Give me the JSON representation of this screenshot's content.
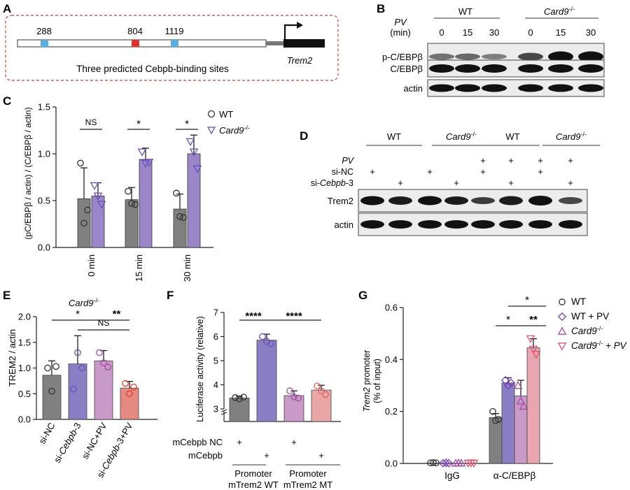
{
  "panels": {
    "A": {
      "letter": "A",
      "sites": [
        "288",
        "804",
        "1119"
      ],
      "caption": "Three predicted Cebpb-binding sites",
      "gene": "Trem2",
      "colors": {
        "site_blue": "#5aaee0",
        "site_red": "#e0332c"
      }
    },
    "B": {
      "letter": "B",
      "pv": "PV",
      "min": "(min)",
      "wt": "WT",
      "ko": "Card9",
      "ko_sup": "-/-",
      "times": [
        "0",
        "15",
        "30",
        "0",
        "15",
        "30"
      ],
      "rows": [
        "p-C/EBPβ",
        "C/EBPβ",
        "actin"
      ]
    },
    "D": {
      "letter": "D",
      "groups": [
        "WT",
        "Card9",
        "WT",
        "Card9"
      ],
      "ko_sup": "-/-",
      "row_labels": [
        "PV",
        "si-NC",
        "si-Cebpb-3"
      ],
      "plus": "+",
      "blot_rows": [
        "Trem2",
        "actin"
      ]
    }
  },
  "chart_data": [
    {
      "panel": "C",
      "type": "bar",
      "categories": [
        "0 min",
        "15 min",
        "30 min"
      ],
      "ylabel": "(pC/EBPβ / actin) / (C/EBPβ / actin)",
      "ylim": [
        0,
        1.5
      ],
      "yticks": [
        "0.0",
        "0.5",
        "1.0",
        "1.5"
      ],
      "series": [
        {
          "name": "WT",
          "values": [
            0.52,
            0.51,
            0.41
          ],
          "sd": [
            0.33,
            0.13,
            0.16
          ],
          "points": [
            [
              0.9,
              0.26,
              0.4
            ],
            [
              0.6,
              0.47,
              0.46
            ],
            [
              0.58,
              0.33,
              0.32
            ]
          ],
          "color": "#808080"
        },
        {
          "name": "Card9-/-",
          "values": [
            0.55,
            0.94,
            1.0
          ],
          "sd": [
            0.14,
            0.12,
            0.2
          ],
          "points": [
            [
              0.66,
              0.55,
              0.46
            ],
            [
              1.02,
              0.9,
              0.91
            ],
            [
              1.13,
              1.02,
              0.84
            ]
          ],
          "color": "#9a86c8"
        }
      ],
      "significance": [
        "NS",
        "*",
        "*"
      ],
      "legend": {
        "wt": "WT",
        "ko": "Card9",
        "ko_sup": "-/-"
      }
    },
    {
      "panel": "E",
      "type": "bar",
      "title": "Card9",
      "title_sup": "-/-",
      "categories": [
        "si-NC",
        "si-Cebpb-3",
        "si-NC+PV",
        "si-Cebpb-3+PV"
      ],
      "ylabel": "TREM2 / actin",
      "ylim": [
        0,
        2.0
      ],
      "yticks": [
        "0.0",
        "0.5",
        "1.0",
        "1.5",
        "2.0"
      ],
      "values": [
        0.86,
        1.08,
        1.14,
        0.61
      ],
      "sd": [
        0.28,
        0.55,
        0.2,
        0.13
      ],
      "points": [
        [
          1.0,
          0.55,
          1.03
        ],
        [
          0.59,
          1.3,
          1.0
        ],
        [
          1.3,
          1.1,
          1.02
        ],
        [
          0.7,
          0.5,
          0.63
        ]
      ],
      "colors": [
        "#808080",
        "#8a7fc4",
        "#c99ac8",
        "#e48a82"
      ],
      "point_colors": [
        "#333333",
        "#6b4fb8",
        "#a34ba3",
        "#e03c2c"
      ],
      "significance": [
        "*",
        "NS",
        "**"
      ]
    },
    {
      "panel": "F",
      "type": "bar",
      "ylabel": "Luciferase activity (relative)",
      "ylim": [
        2,
        7
      ],
      "yticks": [
        "3",
        "4",
        "5",
        "6",
        "7"
      ],
      "values": [
        3.45,
        5.85,
        3.55,
        3.78
      ],
      "sd": [
        0.08,
        0.25,
        0.2,
        0.2
      ],
      "points": [
        [
          3.47,
          3.42,
          3.49
        ],
        [
          6.0,
          5.8,
          5.7
        ],
        [
          3.75,
          3.5,
          3.45
        ],
        [
          3.95,
          3.75,
          3.6
        ]
      ],
      "colors": [
        "#808080",
        "#8a7fc4",
        "#c99ac8",
        "#e9a6a6"
      ],
      "point_colors": [
        "#333333",
        "#6b4fb8",
        "#a34ba3",
        "#e06060"
      ],
      "row_labels": [
        "mCebpb NC",
        "mCebpb"
      ],
      "plus": "+",
      "groups": [
        "Promoter\nmTrem2 WT",
        "Promoter\nmTrem2 MT"
      ],
      "significance": [
        "****",
        "****"
      ]
    },
    {
      "panel": "G",
      "type": "bar",
      "categories": [
        "IgG",
        "α-C/EBPβ"
      ],
      "ylabel": "Trem2 promoter",
      "ylabel2": "(% of input)",
      "ylim": [
        0,
        0.6
      ],
      "yticks": [
        "0.0",
        "0.2",
        "0.4",
        "0.6"
      ],
      "series": [
        {
          "name": "WT",
          "values": [
            0.002,
            0.177
          ],
          "sd": [
            0.001,
            0.015
          ],
          "points": [
            [
              0.002,
              0.003,
              0.002
            ],
            [
              0.2,
              0.165,
              0.17
            ]
          ],
          "color": "#808080",
          "marker": "circle",
          "point_color": "#333333"
        },
        {
          "name": "WT + PV",
          "values": [
            0.001,
            0.31
          ],
          "sd": [
            0.001,
            0.02
          ],
          "points": [
            [
              0.001,
              0.002,
              0.001
            ],
            [
              0.32,
              0.3,
              0.31
            ]
          ],
          "color": "#8a7fc4",
          "marker": "diamond",
          "point_color": "#7a3fb0"
        },
        {
          "name": "Card9-/-",
          "values": [
            0.001,
            0.26
          ],
          "sd": [
            0.001,
            0.06
          ],
          "points": [
            [
              0.001,
              0.002,
              0.001
            ],
            [
              0.3,
              0.24,
              0.22
            ]
          ],
          "color": "#c99ac8",
          "marker": "triangle",
          "point_color": "#a34ba3"
        },
        {
          "name": "Card9-/- + PV",
          "values": [
            0.001,
            0.445
          ],
          "sd": [
            0.001,
            0.035
          ],
          "points": [
            [
              0.001,
              0.002,
              0.001
            ],
            [
              0.48,
              0.44,
              0.42
            ]
          ],
          "color": "#e9a6b0",
          "marker": "triangle-down",
          "point_color": "#e05070"
        }
      ],
      "significance": [
        "*",
        "**",
        "*"
      ],
      "legend": [
        {
          "main": "WT",
          "sup": "",
          "tail": ""
        },
        {
          "main": "WT + PV",
          "sup": "",
          "tail": ""
        },
        {
          "main": "Card9",
          "sup": "-/-",
          "tail": ""
        },
        {
          "main": "Card9",
          "sup": "-/-",
          "tail": " + PV"
        }
      ]
    }
  ],
  "letters": {
    "C": "C",
    "E": "E",
    "F": "F",
    "G": "G"
  }
}
